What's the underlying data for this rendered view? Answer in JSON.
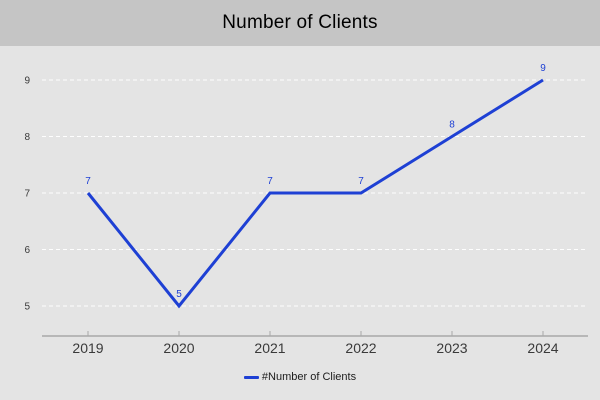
{
  "title": "Number of Clients",
  "chart_data": {
    "type": "line",
    "title": "Number of Clients",
    "categories": [
      "2019",
      "2020",
      "2021",
      "2022",
      "2023",
      "2024"
    ],
    "series": [
      {
        "name": "#Number of Clients",
        "values": [
          7,
          5,
          7,
          7,
          8,
          9
        ]
      }
    ],
    "data_labels": [
      "7",
      "5",
      "7",
      "7",
      "8",
      "9"
    ],
    "xlabel": "",
    "ylabel": "",
    "y_ticks": [
      5,
      6,
      7,
      8,
      9
    ],
    "ylim": [
      4.47,
      9.6
    ],
    "grid": "horizontal-dashed",
    "legend_position": "bottom-center",
    "colors": {
      "line": "#1e40d4",
      "data_label": "#1e40d4",
      "title_band": "#c5c5c5",
      "background": "#e4e4e4",
      "gridline": "#ffffff",
      "axis": "#a8a8a8",
      "tick_label": "#3a3a3a"
    }
  },
  "legend": {
    "label": "#Number of Clients",
    "swatch_color": "#1e40d4"
  }
}
